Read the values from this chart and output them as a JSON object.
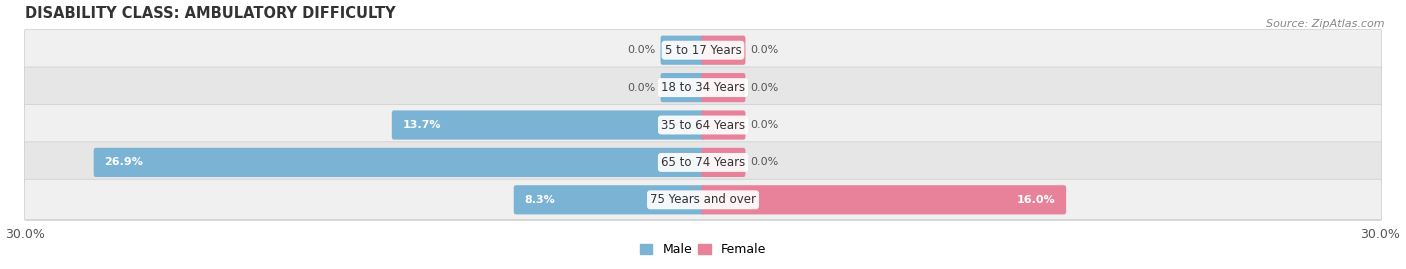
{
  "title": "DISABILITY CLASS: AMBULATORY DIFFICULTY",
  "source": "Source: ZipAtlas.com",
  "categories": [
    "5 to 17 Years",
    "18 to 34 Years",
    "35 to 64 Years",
    "65 to 74 Years",
    "75 Years and over"
  ],
  "male_values": [
    0.0,
    0.0,
    13.7,
    26.9,
    8.3
  ],
  "female_values": [
    0.0,
    0.0,
    0.0,
    0.0,
    16.0
  ],
  "xlim": 30.0,
  "male_color": "#7ab3d4",
  "female_color": "#e8829a",
  "row_colors": [
    "#f0f0f0",
    "#e6e6e6"
  ],
  "label_color": "#444444",
  "title_fontsize": 10.5,
  "tick_fontsize": 9,
  "legend_fontsize": 9,
  "bar_height": 0.62,
  "stub_size": 1.8,
  "figsize": [
    14.06,
    2.69
  ],
  "dpi": 100
}
